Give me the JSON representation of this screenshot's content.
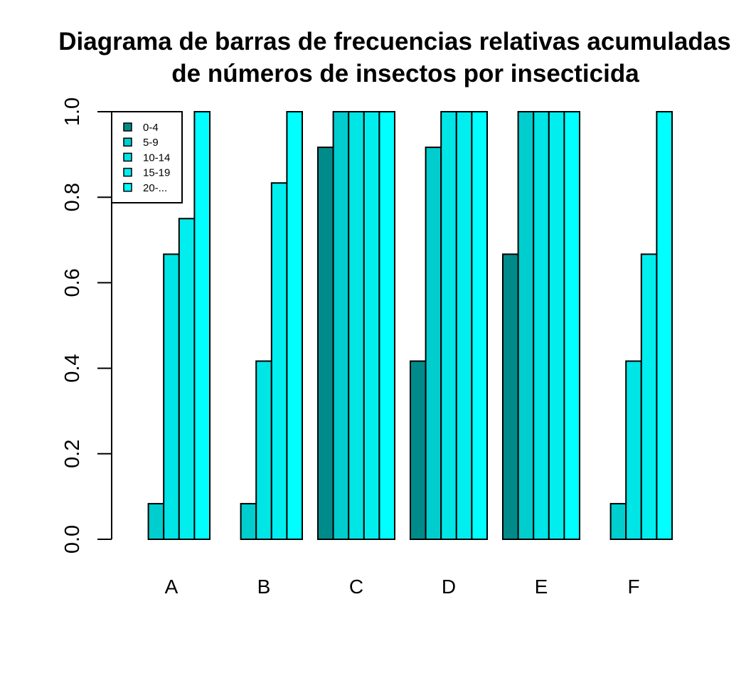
{
  "chart_data": {
    "type": "bar",
    "title": "Diagrama de barras de frecuencias relativas acumuladas",
    "subtitle": "de números de insectos por insecticida",
    "xlabel": "",
    "ylabel": "",
    "ylim": [
      0,
      1
    ],
    "yticks": [
      "0.0",
      "0.2",
      "0.4",
      "0.6",
      "0.8",
      "1.0"
    ],
    "grid": false,
    "legend_position": "top-left",
    "categories": [
      "A",
      "B",
      "C",
      "D",
      "E",
      "F"
    ],
    "series": [
      {
        "name": "0-4",
        "color": "#008B8B",
        "values": [
          0.0,
          0.0,
          0.9167,
          0.4167,
          0.6667,
          0.0
        ]
      },
      {
        "name": "5-9",
        "color": "#00CDCD",
        "values": [
          0.0833,
          0.0833,
          1.0,
          0.9167,
          1.0,
          0.0833
        ]
      },
      {
        "name": "10-14",
        "color": "#00E5E5",
        "values": [
          0.6667,
          0.4167,
          1.0,
          1.0,
          1.0,
          0.4167
        ]
      },
      {
        "name": "15-19",
        "color": "#00EEEE",
        "values": [
          0.75,
          0.8333,
          1.0,
          1.0,
          1.0,
          0.6667
        ]
      },
      {
        "name": "20-...",
        "color": "#00FFFF",
        "values": [
          1.0,
          1.0,
          1.0,
          1.0,
          1.0,
          1.0
        ]
      }
    ]
  }
}
